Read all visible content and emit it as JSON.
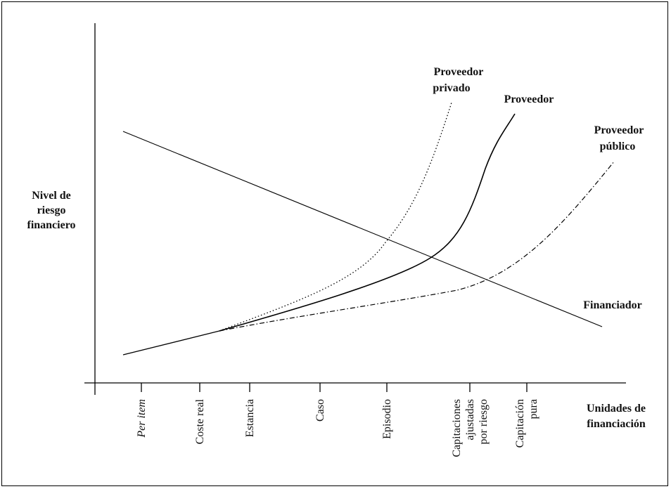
{
  "y_axis_label": [
    "Nivel de",
    "riesgo",
    "financiero"
  ],
  "x_axis_label": [
    "Unidades de",
    "financiación"
  ],
  "x_ticks": [
    {
      "lines": [
        "Per item"
      ],
      "italic": true
    },
    {
      "lines": [
        "Coste real"
      ],
      "italic": false
    },
    {
      "lines": [
        "Estancia"
      ],
      "italic": false
    },
    {
      "lines": [
        "Caso"
      ],
      "italic": false
    },
    {
      "lines": [
        "Episodio"
      ],
      "italic": false
    },
    {
      "lines": [
        "Capitaciones",
        "ajustadas",
        "por riesgo"
      ],
      "italic": false
    },
    {
      "lines": [
        "Capitación",
        "pura"
      ],
      "italic": false
    }
  ],
  "curves": [
    {
      "name": "financiador",
      "lines": [
        "Financiador"
      ],
      "style": "solid"
    },
    {
      "name": "proveedor",
      "lines": [
        "Proveedor"
      ],
      "style": "solid"
    },
    {
      "name": "proveedor-privado",
      "lines": [
        "Proveedor",
        "privado"
      ],
      "style": "dotted"
    },
    {
      "name": "proveedor-publico",
      "lines": [
        "Proveedor",
        "público"
      ],
      "style": "dash-dot"
    }
  ]
}
